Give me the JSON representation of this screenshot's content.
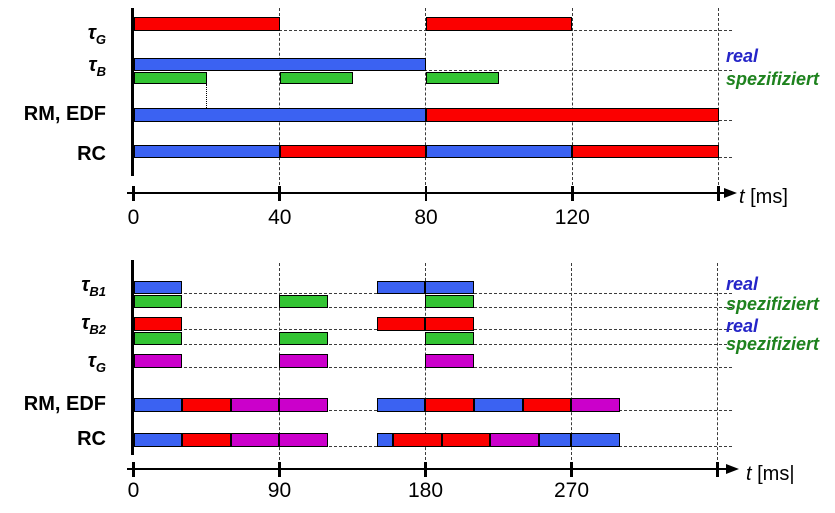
{
  "page": {
    "background": "#FFFFFF"
  },
  "colors": {
    "blue": "#3B62F2",
    "red": "#FB0000",
    "green": "#33C433",
    "magenta": "#CB00CB",
    "legend_blue": "#2525C8",
    "legend_green": "#1E821E",
    "line_black": "#000000",
    "dash_gray": "#3C3C3C"
  },
  "chart_data": [
    {
      "type": "gantt",
      "id": "top-chart",
      "unit": "ms",
      "xlabel": {
        "prefix": "t",
        "suffix": " [ms]"
      },
      "axis": {
        "ticks": [
          {
            "t": 0,
            "label": "0"
          },
          {
            "t": 40,
            "label": "40"
          },
          {
            "t": 80,
            "label": "80"
          },
          {
            "t": 120,
            "label": "120"
          },
          {
            "t": 160,
            "label": ""
          }
        ],
        "xlim": [
          0,
          164
        ],
        "grid": true
      },
      "rows": [
        {
          "name": "tau_G",
          "label": {
            "base": "τ",
            "sub": "G",
            "italic": true
          },
          "baseline": true,
          "bars": [
            {
              "start": 0,
              "end": 40,
              "color": "red"
            },
            {
              "start": 80,
              "end": 120,
              "color": "red"
            }
          ]
        },
        {
          "name": "tau_B_real",
          "label": {
            "base": "τ",
            "sub": "B",
            "italic": true
          },
          "baseline": true,
          "bars": [
            {
              "start": 0,
              "end": 80,
              "color": "blue"
            }
          ]
        },
        {
          "name": "tau_B_spezifiziert",
          "label": null,
          "baseline": false,
          "bars": [
            {
              "start": 0,
              "end": 20,
              "color": "green"
            },
            {
              "start": 40,
              "end": 60,
              "color": "green"
            },
            {
              "start": 80,
              "end": 100,
              "color": "green"
            }
          ]
        },
        {
          "name": "rm_edf",
          "label": {
            "base": "RM, EDF",
            "sub": "",
            "italic": false
          },
          "baseline": true,
          "bars": [
            {
              "start": 0,
              "end": 80,
              "color": "blue"
            },
            {
              "start": 80,
              "end": 160,
              "color": "red"
            }
          ]
        },
        {
          "name": "rc",
          "label": {
            "base": "RC",
            "sub": "",
            "italic": false
          },
          "baseline": true,
          "bars": [
            {
              "start": 0,
              "end": 40,
              "color": "blue"
            },
            {
              "start": 40,
              "end": 80,
              "color": "red"
            },
            {
              "start": 80,
              "end": 120,
              "color": "blue"
            },
            {
              "start": 120,
              "end": 160,
              "color": "red"
            }
          ]
        }
      ],
      "legend": [
        {
          "text": "real",
          "color": "legend_blue"
        },
        {
          "text": "spezifiziert",
          "color": "legend_green"
        }
      ],
      "annotations": [
        {
          "type": "dotted_vline",
          "t": 20
        }
      ]
    },
    {
      "type": "gantt",
      "id": "bottom-chart",
      "unit": "ms",
      "xlabel": {
        "prefix": "t",
        "suffix": " [ms|"
      },
      "axis": {
        "ticks": [
          {
            "t": 0,
            "label": "0"
          },
          {
            "t": 90,
            "label": "90"
          },
          {
            "t": 180,
            "label": "180"
          },
          {
            "t": 270,
            "label": "270"
          },
          {
            "t": 360,
            "label": ""
          }
        ],
        "xlim": [
          0,
          369
        ],
        "grid": true
      },
      "rows": [
        {
          "name": "tau_B1_real",
          "label": {
            "base": "τ",
            "sub": "B1",
            "italic": true
          },
          "baseline": true,
          "bars": [
            {
              "start": 0,
              "end": 30,
              "color": "blue"
            },
            {
              "start": 150,
              "end": 180,
              "color": "blue"
            },
            {
              "start": 180,
              "end": 210,
              "color": "blue"
            }
          ]
        },
        {
          "name": "tau_B1_spezifiziert",
          "label": null,
          "baseline": true,
          "bars": [
            {
              "start": 0,
              "end": 30,
              "color": "green"
            },
            {
              "start": 90,
              "end": 120,
              "color": "green"
            },
            {
              "start": 180,
              "end": 210,
              "color": "green"
            }
          ]
        },
        {
          "name": "tau_B2_real",
          "label": {
            "base": "τ",
            "sub": "B2",
            "italic": true
          },
          "baseline": true,
          "bars": [
            {
              "start": 0,
              "end": 30,
              "color": "red"
            },
            {
              "start": 150,
              "end": 180,
              "color": "red"
            },
            {
              "start": 180,
              "end": 210,
              "color": "red"
            }
          ]
        },
        {
          "name": "tau_B2_spezifiziert",
          "label": null,
          "baseline": true,
          "bars": [
            {
              "start": 0,
              "end": 30,
              "color": "green"
            },
            {
              "start": 90,
              "end": 120,
              "color": "green"
            },
            {
              "start": 180,
              "end": 210,
              "color": "green"
            }
          ]
        },
        {
          "name": "tau_G",
          "label": {
            "base": "τ",
            "sub": "G",
            "italic": true
          },
          "baseline": true,
          "bars": [
            {
              "start": 0,
              "end": 30,
              "color": "magenta"
            },
            {
              "start": 90,
              "end": 120,
              "color": "magenta"
            },
            {
              "start": 180,
              "end": 210,
              "color": "magenta"
            }
          ]
        },
        {
          "name": "rm_edf",
          "label": {
            "base": "RM, EDF",
            "sub": "",
            "italic": false
          },
          "baseline": true,
          "bars": [
            {
              "start": 0,
              "end": 30,
              "color": "blue"
            },
            {
              "start": 30,
              "end": 60,
              "color": "red"
            },
            {
              "start": 60,
              "end": 90,
              "color": "magenta"
            },
            {
              "start": 90,
              "end": 120,
              "color": "magenta"
            },
            {
              "start": 150,
              "end": 180,
              "color": "blue"
            },
            {
              "start": 180,
              "end": 210,
              "color": "red"
            },
            {
              "start": 210,
              "end": 240,
              "color": "blue"
            },
            {
              "start": 240,
              "end": 270,
              "color": "red"
            },
            {
              "start": 270,
              "end": 300,
              "color": "magenta"
            }
          ]
        },
        {
          "name": "rc",
          "label": {
            "base": "RC",
            "sub": "",
            "italic": false
          },
          "baseline": true,
          "bars": [
            {
              "start": 0,
              "end": 30,
              "color": "blue"
            },
            {
              "start": 30,
              "end": 60,
              "color": "red"
            },
            {
              "start": 60,
              "end": 90,
              "color": "magenta"
            },
            {
              "start": 90,
              "end": 120,
              "color": "magenta"
            },
            {
              "start": 150,
              "end": 160,
              "color": "blue"
            },
            {
              "start": 160,
              "end": 190,
              "color": "red"
            },
            {
              "start": 190,
              "end": 220,
              "color": "red"
            },
            {
              "start": 220,
              "end": 250,
              "color": "magenta"
            },
            {
              "start": 250,
              "end": 270,
              "color": "blue"
            },
            {
              "start": 270,
              "end": 300,
              "color": "blue"
            }
          ]
        }
      ],
      "legend": [
        {
          "text": "real",
          "color": "legend_blue"
        },
        {
          "text": "spezifiziert",
          "color": "legend_green"
        },
        {
          "text": "real",
          "color": "legend_blue"
        },
        {
          "text": "spezifiziert",
          "color": "legend_green"
        }
      ],
      "annotations": []
    }
  ]
}
